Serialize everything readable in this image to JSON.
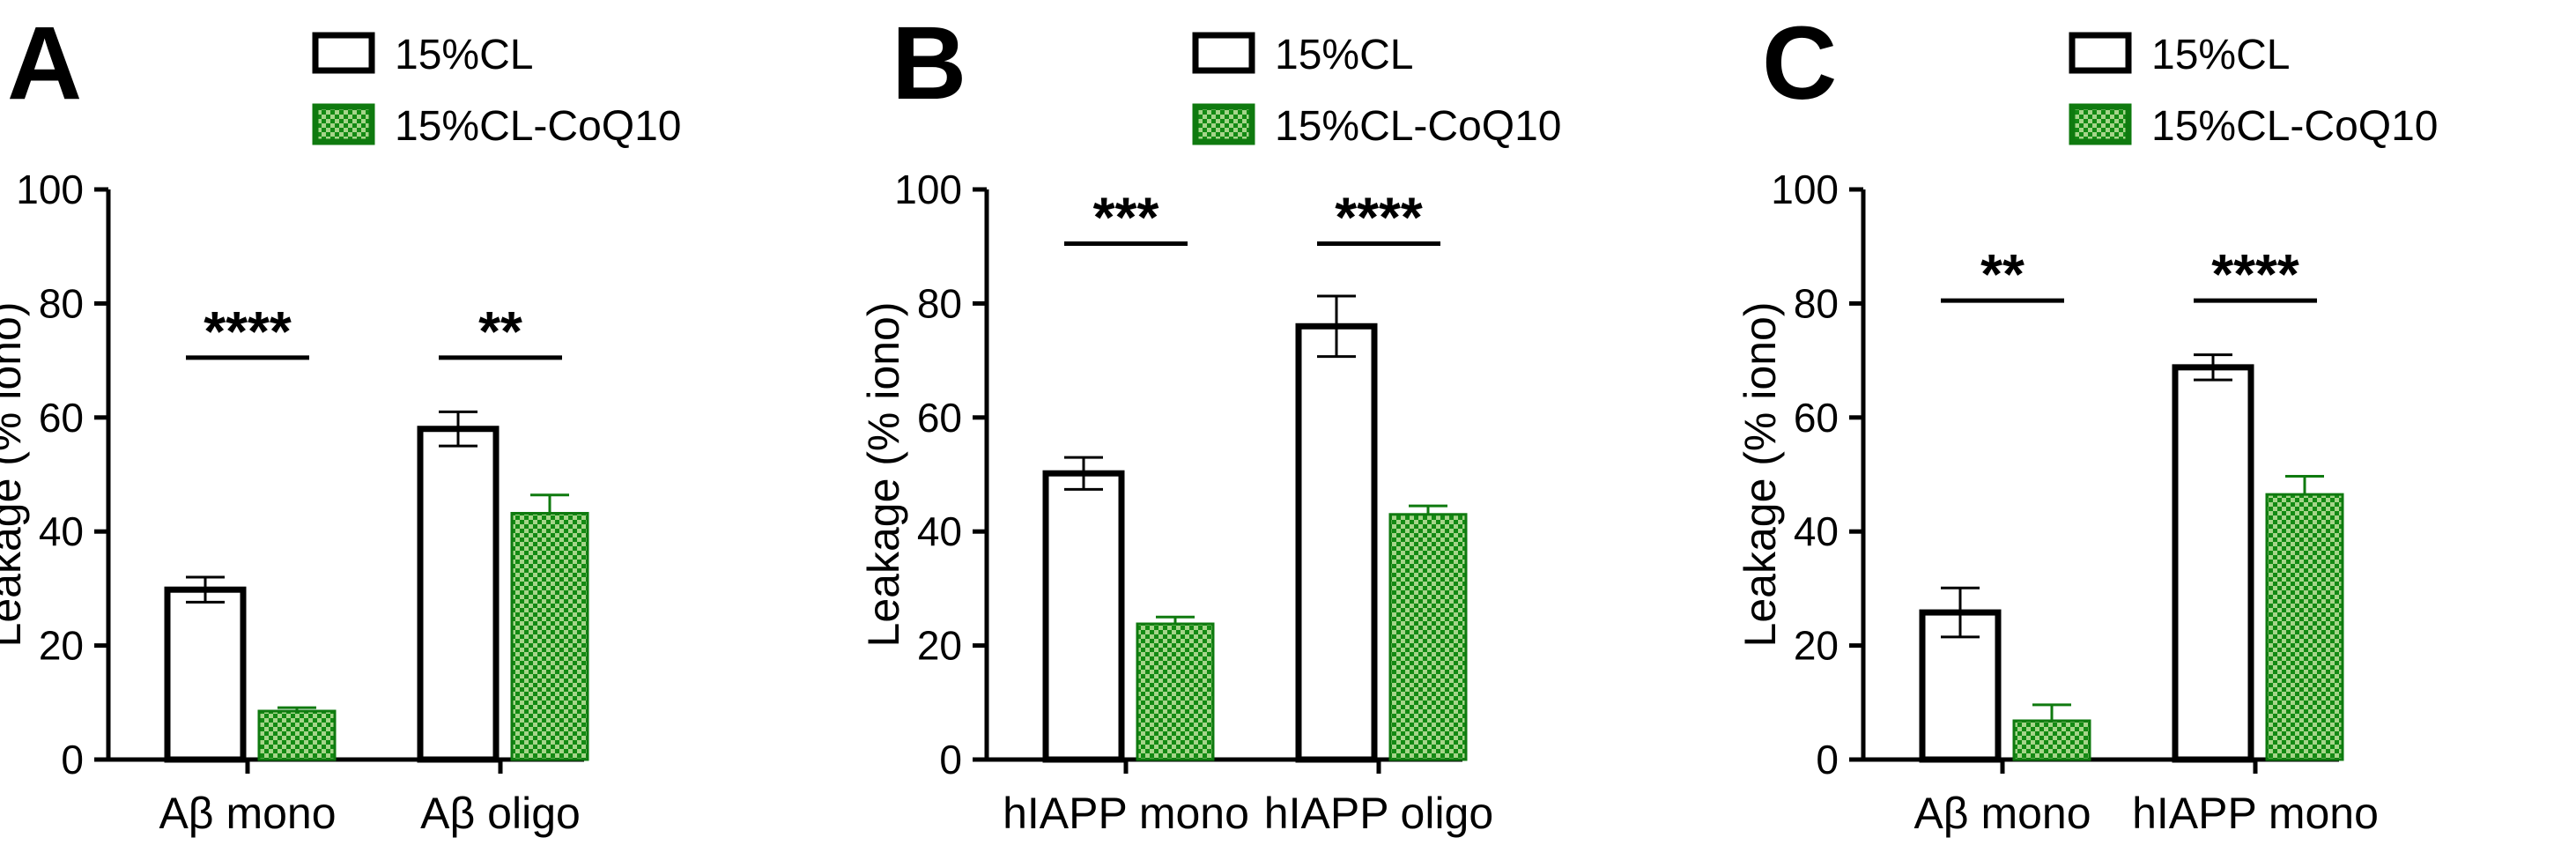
{
  "colors": {
    "axis": "#000000",
    "bar_white_stroke": "#000000",
    "bar_white_fill": "#ffffff",
    "green_dark": "#138a13",
    "green_light": "#a6d58a",
    "green_stroke": "#0f7a0f"
  },
  "chart_data": [
    {
      "type": "bar",
      "panel_label": "A",
      "categories": [
        "Aβ mono",
        "Aβ oligo"
      ],
      "series": [
        {
          "name": "15%CL",
          "values": [
            29.8,
            58.0
          ],
          "errors": [
            2.2,
            3.0
          ],
          "style": "white"
        },
        {
          "name": "15%CL-CoQ10",
          "values": [
            8.5,
            43.2
          ],
          "errors": [
            0.6,
            3.2
          ],
          "style": "green-check"
        }
      ],
      "ylabel": "Leakage  (% iono)",
      "xlabel": "",
      "ylim": [
        0,
        100
      ],
      "yticks": [
        "0",
        "20",
        "40",
        "60",
        "80",
        "100"
      ],
      "significance": [
        {
          "category": 0,
          "stars": "****",
          "level": 70.5
        },
        {
          "category": 1,
          "stars": "**",
          "level": 70.5
        }
      ],
      "legend_placement": "top"
    },
    {
      "type": "bar",
      "panel_label": "B",
      "categories": [
        "hIAPP mono",
        "hIAPP oligo"
      ],
      "series": [
        {
          "name": "15%CL",
          "values": [
            50.2,
            76.0
          ],
          "errors": [
            2.8,
            5.3
          ],
          "style": "white"
        },
        {
          "name": "15%CL-CoQ10",
          "values": [
            23.8,
            43.0
          ],
          "errors": [
            1.2,
            1.5
          ],
          "style": "green-check"
        }
      ],
      "ylabel": "Leakage  (% iono)",
      "xlabel": "",
      "ylim": [
        0,
        100
      ],
      "yticks": [
        "0",
        "20",
        "40",
        "60",
        "80",
        "100"
      ],
      "significance": [
        {
          "category": 0,
          "stars": "***",
          "level": 90.5
        },
        {
          "category": 1,
          "stars": "****",
          "level": 90.5
        }
      ],
      "legend_placement": "top"
    },
    {
      "type": "bar",
      "panel_label": "C",
      "categories": [
        "Aβ mono",
        "hIAPP mono"
      ],
      "series": [
        {
          "name": "15%CL",
          "values": [
            25.8,
            68.8
          ],
          "errors": [
            4.3,
            2.2
          ],
          "style": "white"
        },
        {
          "name": "15%CL-CoQ10",
          "values": [
            6.8,
            46.5
          ],
          "errors": [
            2.8,
            3.2
          ],
          "style": "green-check"
        }
      ],
      "ylabel": "Leakage  (% iono)",
      "xlabel": "",
      "ylim": [
        0,
        100
      ],
      "yticks": [
        "0",
        "20",
        "40",
        "60",
        "80",
        "100"
      ],
      "significance": [
        {
          "category": 0,
          "stars": "**",
          "level": 80.5
        },
        {
          "category": 1,
          "stars": "****",
          "level": 80.5
        }
      ],
      "legend_placement": "top"
    }
  ]
}
